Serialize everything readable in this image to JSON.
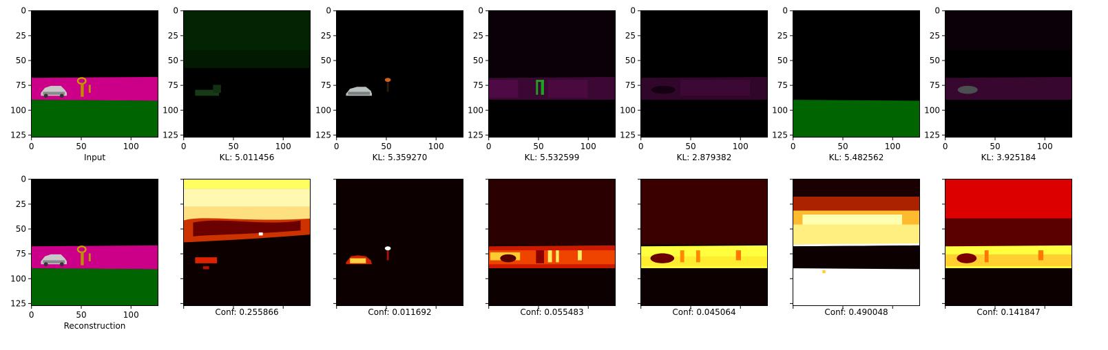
{
  "chart_data": [
    {
      "type": "image",
      "row": 0,
      "label": "Input",
      "xlim": [
        0,
        127
      ],
      "ylim": [
        127,
        0
      ],
      "xticks": [
        0,
        50,
        100
      ],
      "yticks": [
        0,
        25,
        50,
        75,
        100,
        125
      ],
      "xtick_labels": [
        "0",
        "50",
        "100"
      ],
      "ytick_labels": [
        "0",
        "25",
        "50",
        "75",
        "100",
        "125"
      ]
    },
    {
      "type": "image",
      "row": 0,
      "label": "KL: 5.011456",
      "xlim": [
        0,
        127
      ],
      "ylim": [
        127,
        0
      ],
      "xticks": [
        0,
        50,
        100
      ],
      "yticks": [
        0,
        25,
        50,
        75,
        100,
        125
      ],
      "xtick_labels": [
        "0",
        "50",
        "100"
      ],
      "ytick_labels": [
        "0",
        "25",
        "50",
        "75",
        "100",
        "125"
      ]
    },
    {
      "type": "image",
      "row": 0,
      "label": "KL: 5.359270",
      "xlim": [
        0,
        127
      ],
      "ylim": [
        127,
        0
      ],
      "xticks": [
        0,
        50,
        100
      ],
      "yticks": [
        0,
        25,
        50,
        75,
        100,
        125
      ],
      "xtick_labels": [
        "0",
        "50",
        "100"
      ],
      "ytick_labels": [
        "0",
        "25",
        "50",
        "75",
        "100",
        "125"
      ]
    },
    {
      "type": "image",
      "row": 0,
      "label": "KL: 5.532599",
      "xlim": [
        0,
        127
      ],
      "ylim": [
        127,
        0
      ],
      "xticks": [
        0,
        50,
        100
      ],
      "yticks": [
        0,
        25,
        50,
        75,
        100,
        125
      ],
      "xtick_labels": [
        "0",
        "50",
        "100"
      ],
      "ytick_labels": [
        "0",
        "25",
        "50",
        "75",
        "100",
        "125"
      ]
    },
    {
      "type": "image",
      "row": 0,
      "label": "KL: 2.879382",
      "xlim": [
        0,
        127
      ],
      "ylim": [
        127,
        0
      ],
      "xticks": [
        0,
        50,
        100
      ],
      "yticks": [
        0,
        25,
        50,
        75,
        100,
        125
      ],
      "xtick_labels": [
        "0",
        "50",
        "100"
      ],
      "ytick_labels": [
        "0",
        "25",
        "50",
        "75",
        "100",
        "125"
      ]
    },
    {
      "type": "image",
      "row": 0,
      "label": "KL: 5.482562",
      "xlim": [
        0,
        127
      ],
      "ylim": [
        127,
        0
      ],
      "xticks": [
        0,
        50,
        100
      ],
      "yticks": [
        0,
        25,
        50,
        75,
        100,
        125
      ],
      "xtick_labels": [
        "0",
        "50",
        "100"
      ],
      "ytick_labels": [
        "0",
        "25",
        "50",
        "75",
        "100",
        "125"
      ]
    },
    {
      "type": "image",
      "row": 0,
      "label": "KL: 3.925184",
      "xlim": [
        0,
        127
      ],
      "ylim": [
        127,
        0
      ],
      "xticks": [
        0,
        50,
        100
      ],
      "yticks": [
        0,
        25,
        50,
        75,
        100,
        125
      ],
      "xtick_labels": [
        "0",
        "50",
        "100"
      ],
      "ytick_labels": [
        "0",
        "25",
        "50",
        "75",
        "100",
        "125"
      ]
    },
    {
      "type": "image",
      "row": 1,
      "label": "Reconstruction",
      "xlim": [
        0,
        127
      ],
      "ylim": [
        127,
        0
      ],
      "xticks": [
        0,
        50,
        100
      ],
      "yticks": [
        0,
        25,
        50,
        75,
        100,
        125
      ],
      "xtick_labels": [
        "0",
        "50",
        "100"
      ],
      "ytick_labels": [
        "0",
        "25",
        "50",
        "75",
        "100",
        "125"
      ]
    },
    {
      "type": "heatmap",
      "row": 1,
      "label": "Conf: 0.255866",
      "xlim": [
        0,
        127
      ],
      "ylim": [
        127,
        0
      ],
      "xticks": [
        0,
        50,
        100
      ],
      "yticks": [
        0,
        25,
        50,
        75,
        100,
        125
      ],
      "xtick_labels": [],
      "ytick_labels": []
    },
    {
      "type": "heatmap",
      "row": 1,
      "label": "Conf: 0.011692",
      "xlim": [
        0,
        127
      ],
      "ylim": [
        127,
        0
      ],
      "xticks": [
        0,
        50,
        100
      ],
      "yticks": [
        0,
        25,
        50,
        75,
        100,
        125
      ],
      "xtick_labels": [],
      "ytick_labels": []
    },
    {
      "type": "heatmap",
      "row": 1,
      "label": "Conf: 0.055483",
      "xlim": [
        0,
        127
      ],
      "ylim": [
        127,
        0
      ],
      "xticks": [
        0,
        50,
        100
      ],
      "yticks": [
        0,
        25,
        50,
        75,
        100,
        125
      ],
      "xtick_labels": [],
      "ytick_labels": []
    },
    {
      "type": "heatmap",
      "row": 1,
      "label": "Conf: 0.045064",
      "xlim": [
        0,
        127
      ],
      "ylim": [
        127,
        0
      ],
      "xticks": [
        0,
        50,
        100
      ],
      "yticks": [
        0,
        25,
        50,
        75,
        100,
        125
      ],
      "xtick_labels": [],
      "ytick_labels": []
    },
    {
      "type": "heatmap",
      "row": 1,
      "label": "Conf: 0.490048",
      "xlim": [
        0,
        127
      ],
      "ylim": [
        127,
        0
      ],
      "xticks": [
        0,
        50,
        100
      ],
      "yticks": [
        0,
        25,
        50,
        75,
        100,
        125
      ],
      "xtick_labels": [],
      "ytick_labels": []
    },
    {
      "type": "heatmap",
      "row": 1,
      "label": "Conf: 0.141847",
      "xlim": [
        0,
        127
      ],
      "ylim": [
        127,
        0
      ],
      "xticks": [
        0,
        50,
        100
      ],
      "yticks": [
        0,
        25,
        50,
        75,
        100,
        125
      ],
      "xtick_labels": [],
      "ytick_labels": []
    }
  ],
  "colors": {
    "magenta": "#cc0088",
    "green": "#006400",
    "hot_dark": "#0d0000",
    "hot_red": "#cc0000",
    "hot_yellow": "#ffff33"
  }
}
